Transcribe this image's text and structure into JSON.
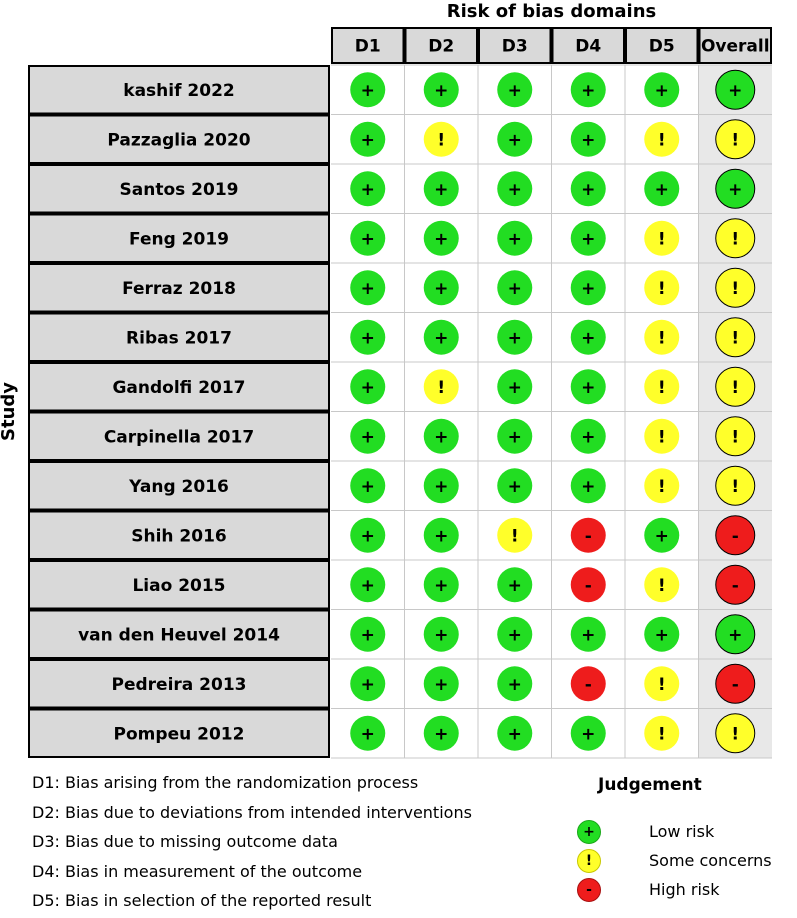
{
  "header": {
    "title": "Risk of bias domains",
    "y_axis_label": "Study"
  },
  "domains": [
    "D1",
    "D2",
    "D3",
    "D4",
    "D5",
    "Overall"
  ],
  "studies": [
    {
      "name": "kashif 2022",
      "ratings": [
        "low",
        "low",
        "low",
        "low",
        "low",
        "low"
      ]
    },
    {
      "name": "Pazzaglia 2020",
      "ratings": [
        "low",
        "some",
        "low",
        "low",
        "some",
        "some"
      ]
    },
    {
      "name": "Santos 2019",
      "ratings": [
        "low",
        "low",
        "low",
        "low",
        "low",
        "low"
      ]
    },
    {
      "name": "Feng 2019",
      "ratings": [
        "low",
        "low",
        "low",
        "low",
        "some",
        "some"
      ]
    },
    {
      "name": "Ferraz 2018",
      "ratings": [
        "low",
        "low",
        "low",
        "low",
        "some",
        "some"
      ]
    },
    {
      "name": "Ribas 2017",
      "ratings": [
        "low",
        "low",
        "low",
        "low",
        "some",
        "some"
      ]
    },
    {
      "name": "Gandolfi 2017",
      "ratings": [
        "low",
        "some",
        "low",
        "low",
        "some",
        "some"
      ]
    },
    {
      "name": "Carpinella 2017",
      "ratings": [
        "low",
        "low",
        "low",
        "low",
        "some",
        "some"
      ]
    },
    {
      "name": "Yang 2016",
      "ratings": [
        "low",
        "low",
        "low",
        "low",
        "some",
        "some"
      ]
    },
    {
      "name": "Shih 2016",
      "ratings": [
        "low",
        "low",
        "some",
        "high",
        "low",
        "high"
      ]
    },
    {
      "name": "Liao 2015",
      "ratings": [
        "low",
        "low",
        "low",
        "high",
        "some",
        "high"
      ]
    },
    {
      "name": "van den Heuvel 2014",
      "ratings": [
        "low",
        "low",
        "low",
        "low",
        "low",
        "low"
      ]
    },
    {
      "name": "Pedreira 2013",
      "ratings": [
        "low",
        "low",
        "low",
        "high",
        "some",
        "high"
      ]
    },
    {
      "name": "Pompeu 2012",
      "ratings": [
        "low",
        "low",
        "low",
        "low",
        "some",
        "some"
      ]
    }
  ],
  "symbols": {
    "low": "+",
    "some": "!",
    "high": "-"
  },
  "colors": {
    "low": "#22dd22",
    "some": "#ffff2a",
    "high": "#ee1c1c",
    "cell_grey": "#d9d9d9",
    "overall_bg": "#e8e8e8",
    "grid": "#c8c8c8"
  },
  "domain_key": [
    "D1: Bias arising from the randomization process",
    "D2: Bias due to deviations from intended interventions",
    "D3: Bias due to missing outcome data",
    "D4: Bias in measurement of the outcome",
    "D5: Bias in selection of the reported result"
  ],
  "judgement": {
    "title": "Judgement",
    "items": [
      {
        "key": "low",
        "symbol": "+",
        "label": "Low risk"
      },
      {
        "key": "some",
        "symbol": "!",
        "label": "Some concerns"
      },
      {
        "key": "high",
        "symbol": "-",
        "label": "High risk"
      }
    ]
  }
}
